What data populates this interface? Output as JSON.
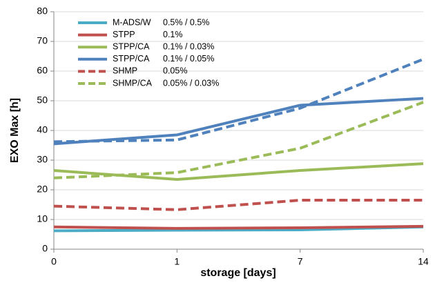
{
  "chart_data": {
    "type": "line",
    "x_label": "storage [days]",
    "y_label": "EXO Max [h]",
    "categories": [
      "0",
      "1",
      "7",
      "14"
    ],
    "ylim": [
      0,
      80
    ],
    "yticks": [
      0,
      10,
      20,
      30,
      40,
      50,
      60,
      70,
      80
    ],
    "grid": true,
    "series": [
      {
        "name": "M-ADS/W",
        "concentration": "0.5% / 0.5%",
        "color": "#4bacc6",
        "dashed": false,
        "values": [
          6.2,
          6.4,
          6.5,
          7.5
        ]
      },
      {
        "name": "STPP",
        "concentration": "0.1%",
        "color": "#c0504d",
        "dashed": false,
        "values": [
          7.5,
          7.0,
          7.2,
          7.7
        ]
      },
      {
        "name": "STPP/CA",
        "concentration": "0.1% / 0.03%",
        "color": "#9bbb59",
        "dashed": false,
        "values": [
          26.5,
          23.5,
          26.5,
          28.8
        ]
      },
      {
        "name": "STPP/CA",
        "concentration": "0.1% / 0.05%",
        "color": "#4f81bd",
        "dashed": false,
        "values": [
          35.5,
          38.5,
          48.5,
          50.8
        ]
      },
      {
        "name": "SHMP",
        "concentration": "0.05%",
        "color": "#c0504d",
        "dashed": true,
        "values": [
          14.5,
          13.3,
          16.5,
          16.5
        ]
      },
      {
        "name": "SHMP/CA",
        "concentration": "0.05% / 0.03%",
        "color": "#9bbb59",
        "dashed": true,
        "values": [
          24.0,
          25.8,
          34.0,
          49.5
        ]
      },
      {
        "color": "#4f81bd",
        "dashed": true,
        "values": [
          36.2,
          36.8,
          47.5,
          64.0
        ]
      }
    ]
  }
}
